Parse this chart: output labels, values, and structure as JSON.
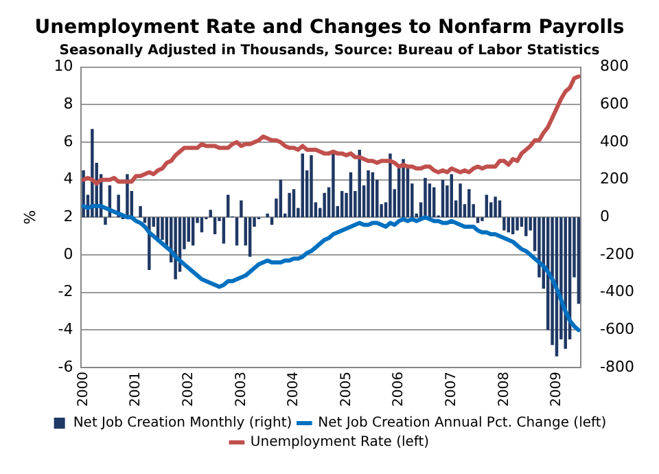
{
  "chart_data": {
    "type": "bar",
    "title": "Unemployment Rate and Changes to Nonfarm Payrolls",
    "subtitle": "Seasonally Adjusted in Thousands, Source: Bureau of Labor Statistics",
    "ylabel": "%",
    "categories": [
      "2000",
      null,
      null,
      null,
      null,
      null,
      null,
      null,
      null,
      null,
      null,
      null,
      "2001",
      null,
      null,
      null,
      null,
      null,
      null,
      null,
      null,
      null,
      null,
      null,
      "2002",
      null,
      null,
      null,
      null,
      null,
      null,
      null,
      null,
      null,
      null,
      null,
      "2003",
      null,
      null,
      null,
      null,
      null,
      null,
      null,
      null,
      null,
      null,
      null,
      "2004",
      null,
      null,
      null,
      null,
      null,
      null,
      null,
      null,
      null,
      null,
      null,
      "2005",
      null,
      null,
      null,
      null,
      null,
      null,
      null,
      null,
      null,
      null,
      null,
      "2006",
      null,
      null,
      null,
      null,
      null,
      null,
      null,
      null,
      null,
      null,
      null,
      "2007",
      null,
      null,
      null,
      null,
      null,
      null,
      null,
      null,
      null,
      null,
      null,
      "2008",
      null,
      null,
      null,
      null,
      null,
      null,
      null,
      null,
      null,
      null,
      null,
      "2009",
      null,
      null,
      null,
      null,
      null
    ],
    "series": [
      {
        "name": "Net Job Creation Monthly (right)",
        "axis": "y2",
        "color": "#1f3864",
        "values": [
          250,
          120,
          470,
          290,
          230,
          -40,
          170,
          0,
          120,
          -10,
          230,
          140,
          null,
          60,
          -30,
          -280,
          -50,
          -130,
          -120,
          -150,
          -240,
          -330,
          -290,
          -170,
          -130,
          -150,
          -30,
          -80,
          -10,
          40,
          -90,
          -20,
          -140,
          120,
          5,
          -150,
          90,
          -150,
          -210,
          -50,
          -10,
          0,
          20,
          -40,
          100,
          200,
          20,
          130,
          150,
          50,
          340,
          250,
          330,
          80,
          50,
          130,
          160,
          340,
          60,
          140,
          130,
          240,
          140,
          360,
          170,
          250,
          240,
          200,
          70,
          80,
          340,
          150,
          280,
          310,
          280,
          180,
          20,
          80,
          210,
          180,
          160,
          10,
          200,
          170,
          230,
          90,
          180,
          70,
          150,
          70,
          -30,
          -20,
          120,
          80,
          110,
          90,
          -70,
          -80,
          -90,
          -70,
          -50,
          -100,
          -70,
          -180,
          -320,
          -380,
          -600,
          -680,
          -740,
          -650,
          -700,
          -650,
          -320,
          -460
        ]
      },
      {
        "name": "Net Job Creation Annual Pct. Change (left)",
        "type": "line",
        "color": "#0070c0",
        "values": [
          2.6,
          2.5,
          2.6,
          2.6,
          2.6,
          2.5,
          2.4,
          2.3,
          2.2,
          2.1,
          2.0,
          2.0,
          1.8,
          1.7,
          1.5,
          1.2,
          1.0,
          0.8,
          0.6,
          0.4,
          0.2,
          -0.1,
          -0.3,
          -0.5,
          -0.7,
          -0.9,
          -1.1,
          -1.3,
          -1.4,
          -1.5,
          -1.6,
          -1.7,
          -1.6,
          -1.4,
          -1.4,
          -1.3,
          -1.2,
          -1.1,
          -0.9,
          -0.7,
          -0.5,
          -0.4,
          -0.3,
          -0.4,
          -0.4,
          -0.4,
          -0.3,
          -0.3,
          -0.2,
          -0.2,
          -0.1,
          0.1,
          0.2,
          0.4,
          0.6,
          0.8,
          0.9,
          1.1,
          1.2,
          1.3,
          1.4,
          1.5,
          1.6,
          1.7,
          1.6,
          1.6,
          1.7,
          1.7,
          1.6,
          1.5,
          1.7,
          1.6,
          1.8,
          1.9,
          1.8,
          1.9,
          1.8,
          1.9,
          2.0,
          1.9,
          1.8,
          1.8,
          1.7,
          1.7,
          1.8,
          1.7,
          1.6,
          1.5,
          1.5,
          1.5,
          1.3,
          1.2,
          1.2,
          1.1,
          1.1,
          1.0,
          0.9,
          0.8,
          0.7,
          0.5,
          0.3,
          0.2,
          0.0,
          -0.2,
          -0.4,
          -0.6,
          -0.9,
          -1.3,
          -1.8,
          -2.4,
          -3.0,
          -3.5,
          -3.8,
          -4.0
        ]
      },
      {
        "name": "Unemployment Rate (left)",
        "type": "line",
        "color": "#c0504d",
        "values": [
          4.0,
          4.1,
          4.0,
          3.8,
          4.0,
          4.0,
          4.0,
          4.1,
          3.9,
          3.9,
          3.9,
          3.9,
          4.2,
          4.2,
          4.3,
          4.4,
          4.3,
          4.5,
          4.6,
          4.9,
          5.0,
          5.3,
          5.5,
          5.7,
          5.7,
          5.7,
          5.7,
          5.9,
          5.8,
          5.8,
          5.8,
          5.7,
          5.7,
          5.7,
          5.9,
          6.0,
          5.8,
          5.9,
          5.9,
          6.0,
          6.1,
          6.3,
          6.2,
          6.1,
          6.1,
          6.0,
          5.8,
          5.7,
          5.7,
          5.6,
          5.8,
          5.6,
          5.6,
          5.6,
          5.5,
          5.4,
          5.4,
          5.5,
          5.4,
          5.4,
          5.3,
          5.4,
          5.2,
          5.2,
          5.1,
          5.0,
          5.0,
          4.9,
          5.0,
          5.0,
          5.0,
          4.9,
          4.7,
          4.8,
          4.7,
          4.7,
          4.6,
          4.6,
          4.7,
          4.7,
          4.5,
          4.4,
          4.5,
          4.4,
          4.6,
          4.5,
          4.4,
          4.5,
          4.4,
          4.6,
          4.7,
          4.6,
          4.7,
          4.7,
          4.7,
          5.0,
          5.0,
          4.8,
          5.1,
          5.0,
          5.4,
          5.6,
          5.8,
          6.1,
          6.1,
          6.5,
          6.8,
          7.3,
          7.8,
          8.3,
          8.7,
          8.9,
          9.4,
          9.5
        ]
      }
    ],
    "ylim": [
      -6,
      10
    ],
    "yticks": [
      -6,
      -4,
      -2,
      0,
      2,
      4,
      6,
      8,
      10
    ],
    "y2lim": [
      -800,
      800
    ],
    "y2ticks": [
      -800,
      -600,
      -400,
      -200,
      0,
      200,
      400,
      600,
      800
    ],
    "grid": "y",
    "legend": "bottom",
    "marker": "none",
    "line_style": "solid"
  }
}
